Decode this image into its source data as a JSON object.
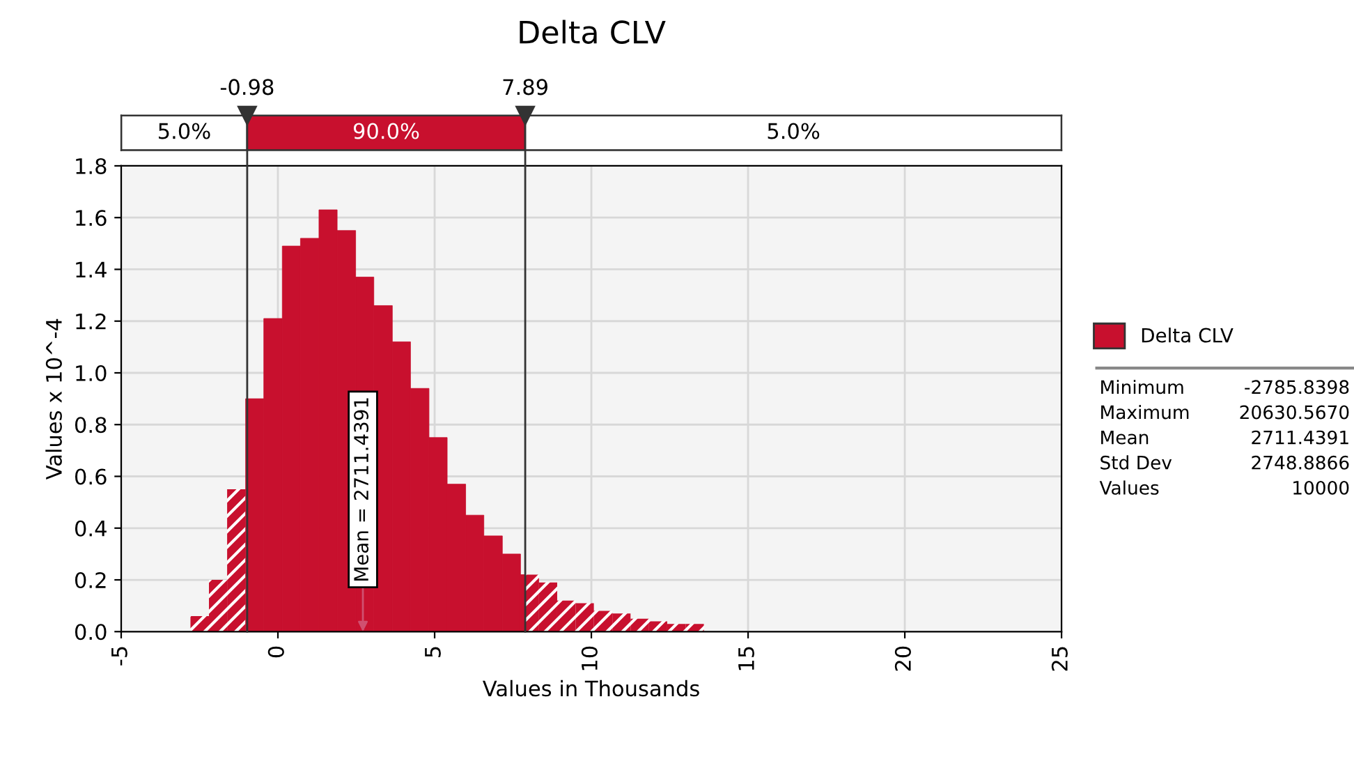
{
  "chart_data": {
    "type": "histogram",
    "title": "Delta CLV",
    "xlabel": "Values in Thousands",
    "ylabel": "Values x 10^-4",
    "bins": [
      -2.79,
      -2.2,
      -1.62,
      -1.03,
      -0.45,
      0.14,
      0.72,
      1.31,
      1.89,
      2.48,
      3.06,
      3.65,
      4.23,
      4.82,
      5.4,
      5.99,
      6.57,
      7.16,
      7.74,
      7.89,
      8.33,
      8.91,
      9.5,
      10.08,
      10.67,
      11.25,
      11.84,
      12.42,
      13.01,
      13.59
    ],
    "series": [
      {
        "name": "Delta CLV",
        "color": "#c8102e",
        "values": [
          0.06,
          0.2,
          0.55,
          0.9,
          1.21,
          1.49,
          1.52,
          1.63,
          1.55,
          1.37,
          1.26,
          1.12,
          0.94,
          0.75,
          0.57,
          0.45,
          0.37,
          0.3,
          0.22,
          0.22,
          0.19,
          0.12,
          0.11,
          0.08,
          0.07,
          0.05,
          0.04,
          0.03,
          0.03
        ]
      }
    ],
    "xlim": [
      -5,
      25
    ],
    "xticks": [
      -5,
      0,
      5,
      10,
      15,
      20,
      25
    ],
    "ylim": [
      0,
      1.8
    ],
    "yticks": [
      {
        "value": 0,
        "label": "0.0"
      },
      {
        "value": 0.2,
        "label": "0.2"
      },
      {
        "value": 0.4,
        "label": "0.4"
      },
      {
        "value": 0.6,
        "label": "0.6"
      },
      {
        "value": 0.8,
        "label": "0.8"
      },
      {
        "value": 1.0,
        "label": "1.0"
      },
      {
        "value": 1.2,
        "label": "1.2"
      },
      {
        "value": 1.4,
        "label": "1.4"
      },
      {
        "value": 1.6,
        "label": "1.6"
      },
      {
        "value": 1.8,
        "label": "1.8"
      }
    ],
    "grid": true,
    "legend": "right",
    "ref_lines": [
      {
        "axis": "x",
        "value": -0.98,
        "label": "-0.98"
      },
      {
        "axis": "x",
        "value": 7.89,
        "label": "7.89"
      }
    ],
    "annotations": [
      {
        "text": "Mean = 2711.4391",
        "x": 2.7114391,
        "y": 0
      },
      "5.0%",
      "90.0%",
      "5.0%",
      "Minimum -2785.8398",
      "Maximum 20630.5670",
      "Mean 2711.4391",
      "Std Dev 2748.8866",
      "Values 10000"
    ]
  }
}
